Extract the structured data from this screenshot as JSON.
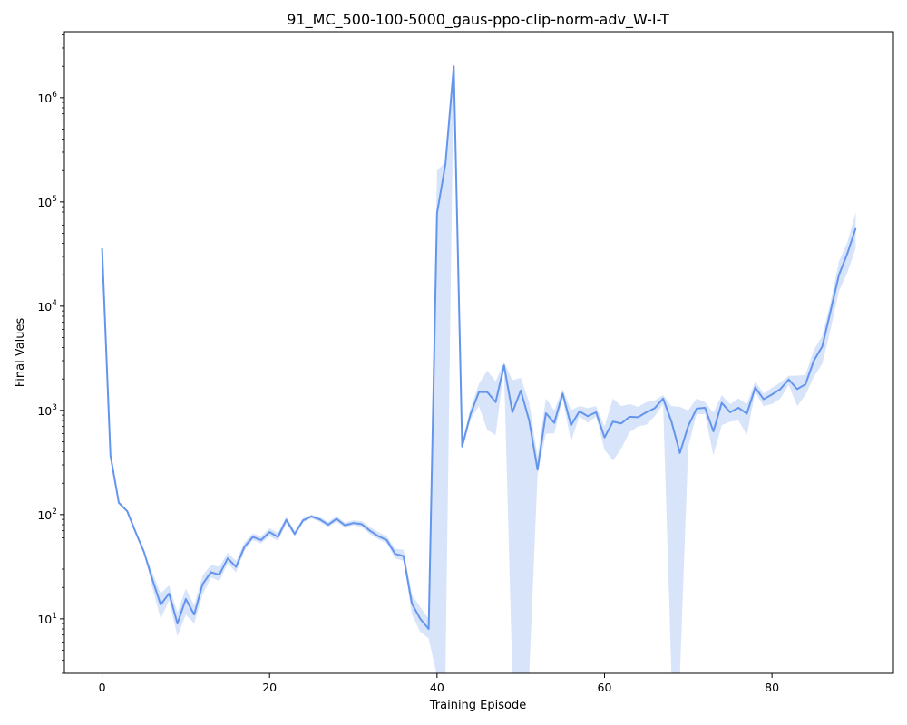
{
  "chart_data": {
    "type": "line",
    "title": "91_MC_500-100-5000_gaus-ppo-clip-norm-adv_W-I-T",
    "xlabel": "Training Episode",
    "ylabel": "Final Values",
    "yscale": "log",
    "xlim": [
      -4.5,
      94.5
    ],
    "ylim": [
      3,
      4300000
    ],
    "xticks": [
      0,
      20,
      40,
      60,
      80
    ],
    "xtick_labels": [
      "0",
      "20",
      "40",
      "60",
      "80"
    ],
    "yticks": [
      10,
      100,
      1000,
      10000,
      100000,
      1000000
    ],
    "ytick_labels": [
      {
        "base": "10",
        "exp": "1"
      },
      {
        "base": "10",
        "exp": "2"
      },
      {
        "base": "10",
        "exp": "3"
      },
      {
        "base": "10",
        "exp": "4"
      },
      {
        "base": "10",
        "exp": "5"
      },
      {
        "base": "10",
        "exp": "6"
      }
    ],
    "grid": false,
    "line_color": "#6495ED",
    "band_color": "#6495ED",
    "series": [
      {
        "x": [
          0,
          1,
          2,
          3,
          4,
          5,
          6,
          7,
          8,
          9,
          10,
          11,
          12,
          13,
          14,
          15,
          16,
          17,
          18,
          19,
          20,
          21,
          22,
          23,
          24,
          25,
          26,
          27,
          28,
          29,
          30,
          31,
          32,
          33,
          34,
          35,
          36,
          37,
          38,
          39,
          40,
          41,
          42,
          43,
          44,
          45,
          46,
          47,
          48,
          49,
          50,
          51,
          52,
          53,
          54,
          55,
          56,
          57,
          58,
          59,
          60,
          61,
          62,
          63,
          64,
          65,
          66,
          67,
          68,
          69,
          70,
          71,
          72,
          73,
          74,
          75,
          76,
          77,
          78,
          79,
          80,
          81,
          82,
          83,
          84,
          85,
          86,
          87,
          88,
          89,
          90
        ],
        "values": [
          36000,
          370,
          130,
          108,
          68,
          44,
          24,
          13.7,
          17.5,
          9,
          15.5,
          11,
          21.5,
          28,
          26.5,
          38,
          31.5,
          49,
          61,
          57,
          68,
          61,
          89,
          65,
          88,
          96,
          90,
          80,
          91,
          79,
          83,
          81,
          70,
          62,
          57,
          42,
          40,
          14,
          10,
          8,
          78000,
          230000,
          2000000,
          450,
          920,
          1500,
          1500,
          1200,
          2700,
          960,
          1550,
          800,
          270,
          940,
          760,
          1450,
          720,
          980,
          880,
          960,
          550,
          780,
          750,
          870,
          860,
          960,
          1050,
          1300,
          780,
          390,
          710,
          1040,
          1060,
          630,
          1180,
          960,
          1060,
          930,
          1660,
          1280,
          1420,
          1600,
          1980,
          1600,
          1780,
          3000,
          4100,
          9000,
          20000,
          32000,
          56000
        ],
        "lower": [
          36000,
          370,
          130,
          108,
          68,
          44,
          20,
          10,
          15,
          6.8,
          11,
          9,
          17,
          25,
          23,
          34,
          28,
          45,
          57,
          53,
          62,
          56,
          82,
          62,
          84,
          92,
          85,
          76,
          85,
          75,
          79,
          76,
          65,
          58,
          53,
          38,
          36,
          11,
          7.5,
          6.5,
          1,
          1,
          2000000,
          420,
          820,
          1100,
          650,
          580,
          2500,
          1,
          1,
          1,
          240,
          600,
          600,
          1300,
          500,
          880,
          760,
          870,
          420,
          330,
          430,
          620,
          700,
          730,
          880,
          1150,
          1,
          1,
          450,
          920,
          920,
          370,
          720,
          780,
          800,
          580,
          1500,
          1100,
          1150,
          1300,
          1750,
          1100,
          1400,
          2100,
          2800,
          6000,
          14000,
          21000,
          36000
        ],
        "upper": [
          36000,
          370,
          130,
          108,
          68,
          44,
          28,
          17.5,
          21,
          11.5,
          19.5,
          13.5,
          26,
          33,
          31.5,
          43,
          36,
          54,
          66,
          62,
          74,
          67,
          96,
          70,
          93,
          100,
          95,
          85,
          97,
          84,
          88,
          87,
          76,
          68,
          62,
          47,
          46,
          17,
          13,
          10,
          200000,
          240000,
          2100000,
          480,
          1050,
          1800,
          2400,
          1900,
          2900,
          1950,
          2050,
          1200,
          360,
          1300,
          1000,
          1600,
          1000,
          1100,
          1050,
          1100,
          700,
          1300,
          1100,
          1150,
          1080,
          1200,
          1250,
          1400,
          1100,
          1080,
          1000,
          1300,
          1200,
          950,
          1400,
          1150,
          1300,
          1150,
          1900,
          1450,
          1650,
          1850,
          2150,
          2150,
          2200,
          3800,
          5200,
          11000,
          27000,
          41000,
          80000
        ]
      }
    ]
  }
}
